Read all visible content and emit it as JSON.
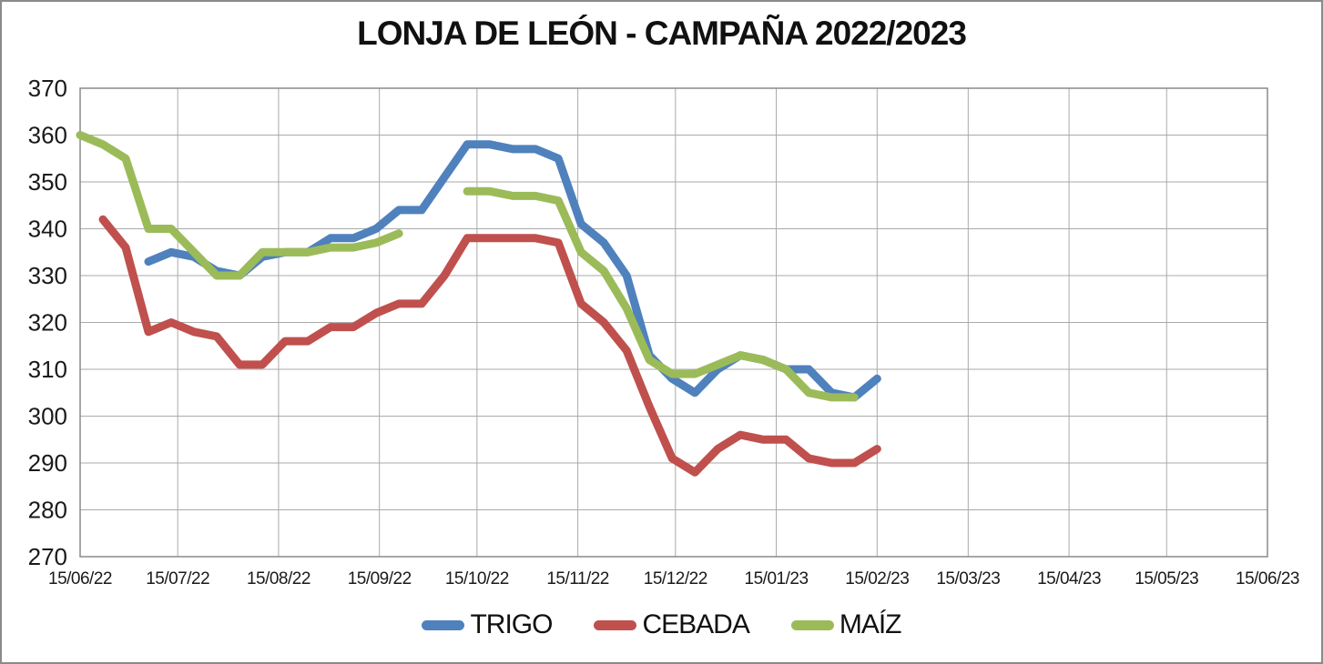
{
  "window": {
    "background": "#ffffff",
    "frame_border_color": "#8a8a8a"
  },
  "chart_data": {
    "type": "line",
    "title": "LONJA DE LEÓN - CAMPAÑA 2022/2023",
    "xlabel": "",
    "ylabel": "",
    "ylim": [
      270,
      370
    ],
    "y_ticks": [
      270,
      280,
      290,
      300,
      310,
      320,
      330,
      340,
      350,
      360,
      370
    ],
    "x_tick_labels": [
      "15/06/22",
      "15/07/22",
      "15/08/22",
      "15/09/22",
      "15/10/22",
      "15/11/22",
      "15/12/22",
      "15/01/23",
      "15/02/23",
      "15/03/23",
      "15/04/23",
      "15/05/23",
      "15/06/23"
    ],
    "x_axis_span_days": 365,
    "grid": true,
    "gridline_color": "#aaaaaa",
    "plot_border_color": "#8a8a8a",
    "legend_position": "bottom",
    "dates": [
      "15/06/22",
      "22/06/22",
      "29/06/22",
      "06/07/22",
      "13/07/22",
      "20/07/22",
      "27/07/22",
      "03/08/22",
      "10/08/22",
      "17/08/22",
      "24/08/22",
      "31/08/22",
      "07/09/22",
      "14/09/22",
      "21/09/22",
      "28/09/22",
      "05/10/22",
      "12/10/22",
      "19/10/22",
      "26/10/22",
      "02/11/22",
      "09/11/22",
      "16/11/22",
      "23/11/22",
      "30/11/22",
      "07/12/22",
      "14/12/22",
      "21/12/22",
      "28/12/22",
      "04/01/23",
      "11/01/23",
      "18/01/23",
      "25/01/23",
      "01/02/23",
      "08/02/23",
      "15/02/23"
    ],
    "series": [
      {
        "id": "trigo",
        "name": "TRIGO",
        "color": "#4F81BD",
        "values": [
          null,
          null,
          null,
          333,
          335,
          334,
          331,
          330,
          334,
          335,
          335,
          338,
          338,
          340,
          344,
          344,
          351,
          358,
          358,
          357,
          357,
          355,
          341,
          337,
          330,
          313,
          308,
          305,
          310,
          313,
          312,
          310,
          310,
          305,
          304,
          308
        ]
      },
      {
        "id": "cebada",
        "name": "CEBADA",
        "color": "#C0504D",
        "values": [
          null,
          342,
          336,
          318,
          320,
          318,
          317,
          311,
          311,
          316,
          316,
          319,
          319,
          322,
          324,
          324,
          330,
          338,
          338,
          338,
          338,
          337,
          324,
          320,
          314,
          302,
          291,
          288,
          293,
          296,
          295,
          295,
          291,
          290,
          290,
          293
        ]
      },
      {
        "id": "maiz",
        "name": "MAÍZ",
        "color": "#9BBB59",
        "values": [
          360,
          358,
          355,
          340,
          340,
          335,
          330,
          330,
          335,
          335,
          335,
          336,
          336,
          337,
          339,
          null,
          null,
          348,
          348,
          347,
          347,
          346,
          335,
          331,
          323,
          312,
          309,
          309,
          311,
          313,
          312,
          310,
          305,
          304,
          304,
          null
        ]
      }
    ]
  }
}
